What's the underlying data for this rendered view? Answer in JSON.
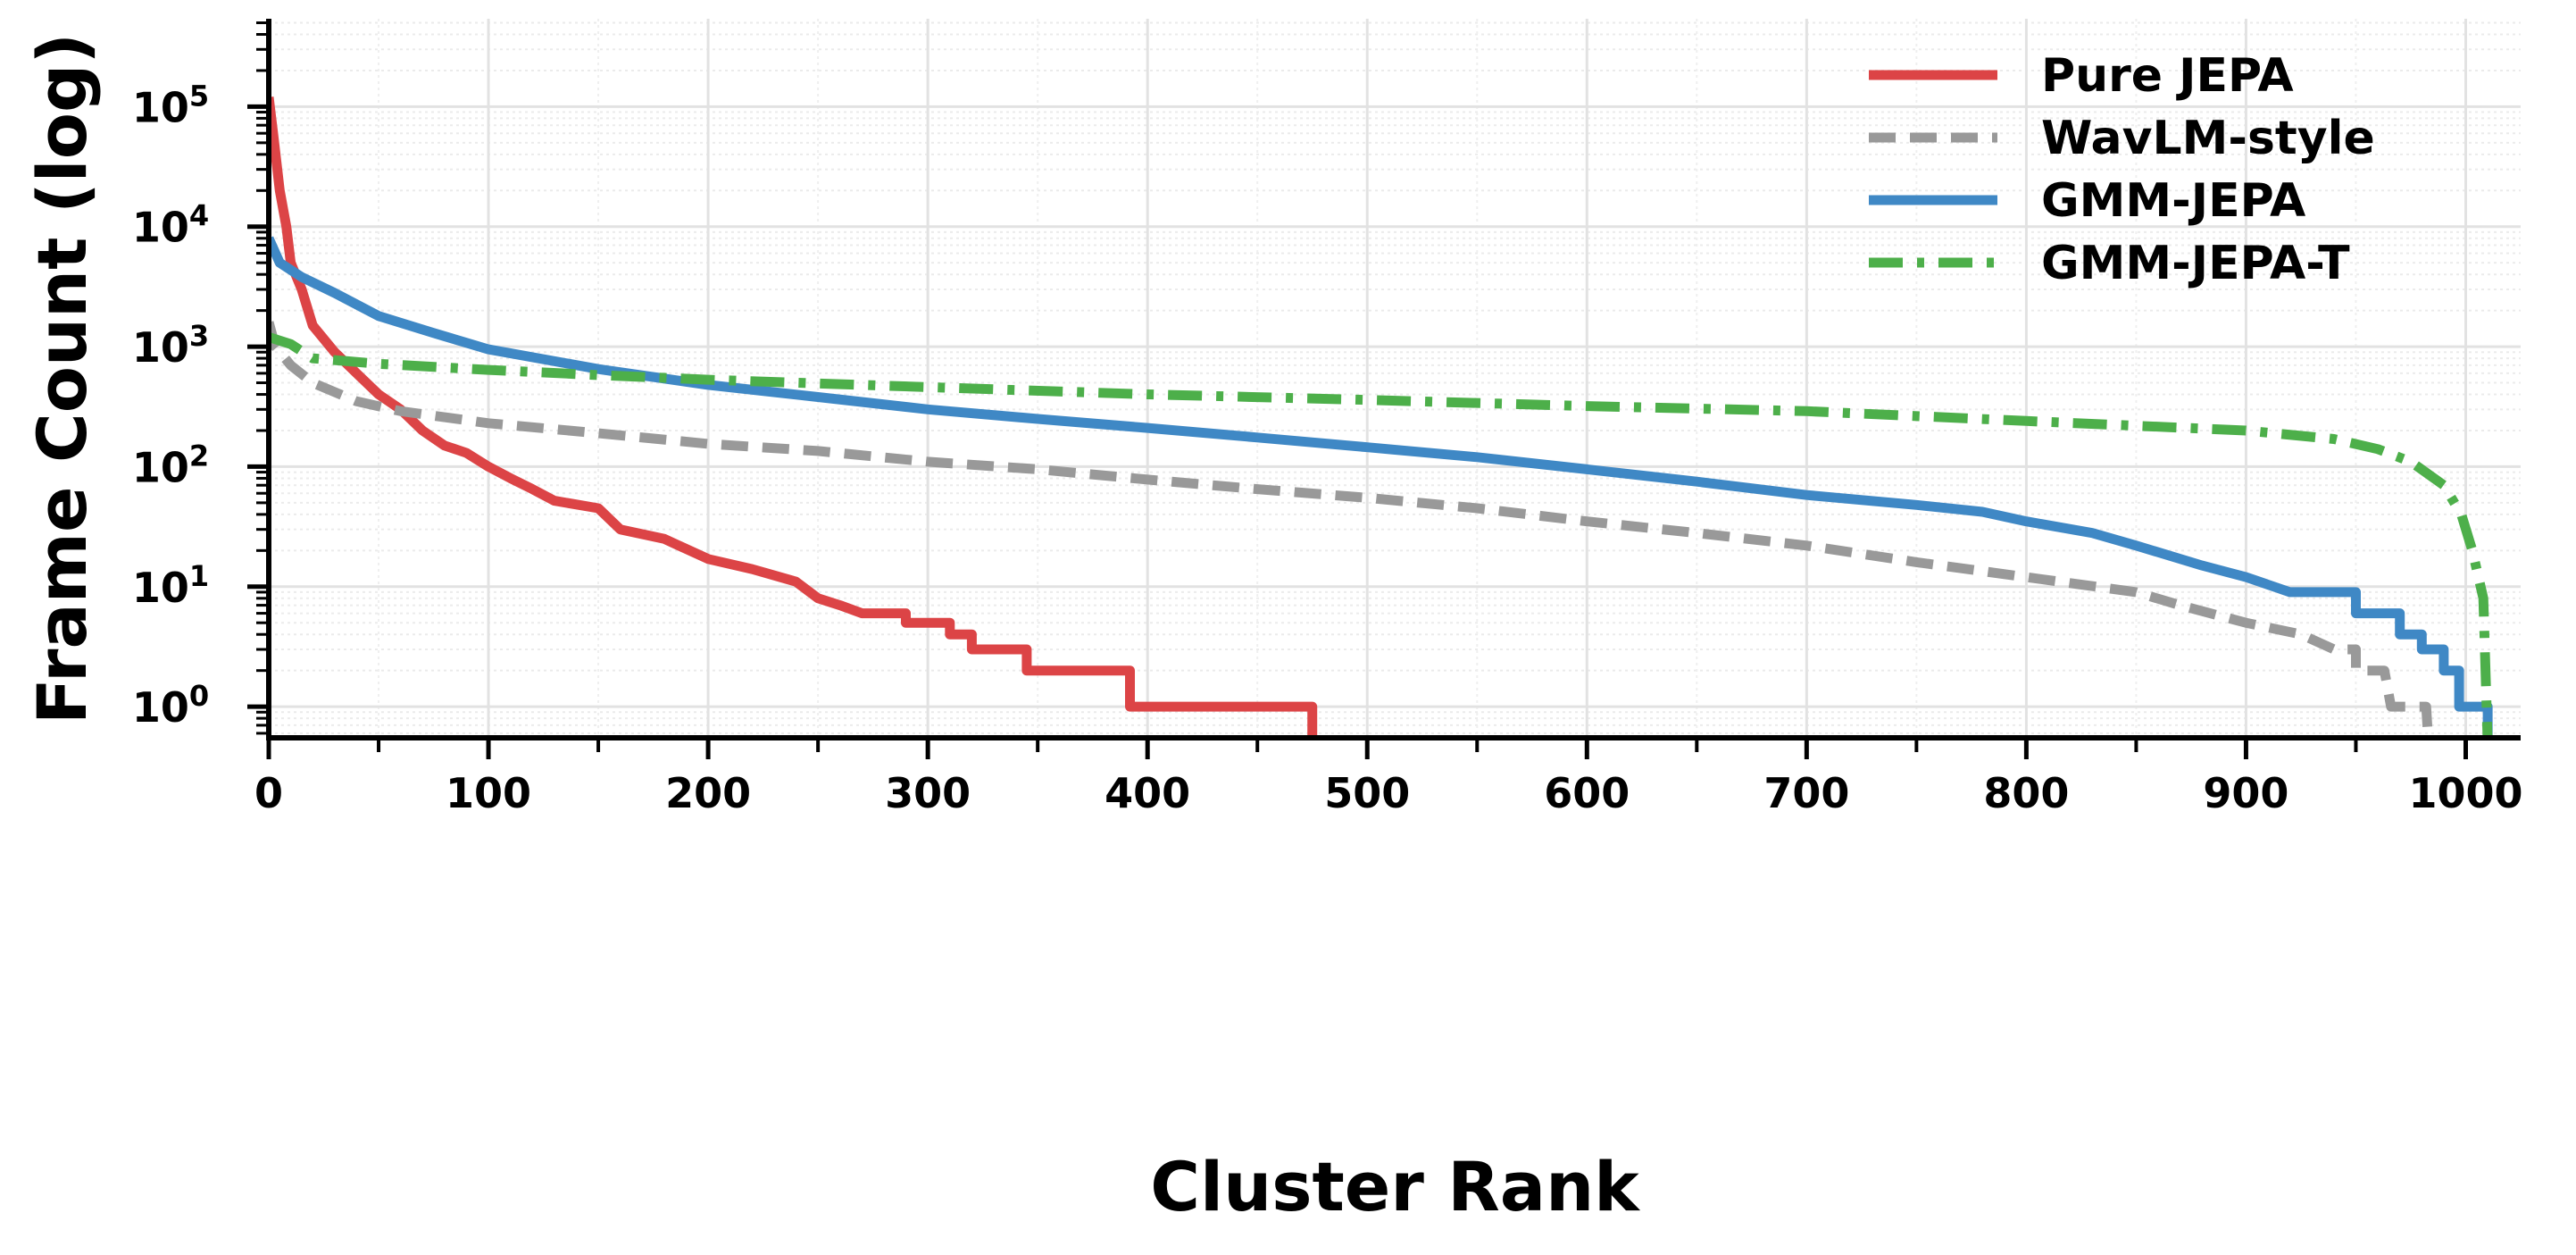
{
  "chart_data": {
    "type": "line",
    "title": "",
    "xlabel": "Cluster Rank",
    "ylabel": "Frame Count (log)",
    "xlim": [
      0,
      1025
    ],
    "ylim": [
      0.55,
      540000
    ],
    "yscale": "log",
    "grid": true,
    "legend_placement": "top-right",
    "x_ticks": [
      "0",
      "100",
      "200",
      "300",
      "400",
      "500",
      "600",
      "700",
      "800",
      "900",
      "1000"
    ],
    "y_ticks": [
      {
        "base": "10",
        "exp": "0"
      },
      {
        "base": "10",
        "exp": "1"
      },
      {
        "base": "10",
        "exp": "2"
      },
      {
        "base": "10",
        "exp": "3"
      },
      {
        "base": "10",
        "exp": "4"
      },
      {
        "base": "10",
        "exp": "5"
      }
    ],
    "series": [
      {
        "name": "Pure JEPA",
        "color": "#dc4446",
        "style": "solid",
        "points": [
          [
            0,
            120000
          ],
          [
            2,
            60000
          ],
          [
            5,
            20000
          ],
          [
            8,
            10000
          ],
          [
            10,
            5000
          ],
          [
            15,
            3000
          ],
          [
            20,
            1500
          ],
          [
            30,
            900
          ],
          [
            40,
            600
          ],
          [
            50,
            400
          ],
          [
            60,
            300
          ],
          [
            70,
            200
          ],
          [
            80,
            150
          ],
          [
            90,
            130
          ],
          [
            100,
            100
          ],
          [
            110,
            80
          ],
          [
            120,
            65
          ],
          [
            130,
            52
          ],
          [
            150,
            45
          ],
          [
            160,
            30
          ],
          [
            180,
            25
          ],
          [
            200,
            17
          ],
          [
            220,
            14
          ],
          [
            240,
            11
          ],
          [
            250,
            8
          ],
          [
            260,
            7
          ],
          [
            270,
            6
          ],
          [
            290,
            6
          ],
          [
            290,
            5
          ],
          [
            310,
            5
          ],
          [
            310,
            4
          ],
          [
            320,
            4
          ],
          [
            320,
            3
          ],
          [
            345,
            3
          ],
          [
            345,
            2
          ],
          [
            392,
            2
          ],
          [
            392,
            1
          ],
          [
            475,
            1
          ],
          [
            475,
            0.5
          ]
        ]
      },
      {
        "name": "WavLM-style",
        "color": "#999999",
        "style": "dashed",
        "points": [
          [
            0,
            1600
          ],
          [
            3,
            1000
          ],
          [
            10,
            700
          ],
          [
            20,
            500
          ],
          [
            40,
            350
          ],
          [
            60,
            290
          ],
          [
            100,
            230
          ],
          [
            150,
            190
          ],
          [
            200,
            155
          ],
          [
            250,
            135
          ],
          [
            300,
            110
          ],
          [
            350,
            95
          ],
          [
            400,
            78
          ],
          [
            450,
            65
          ],
          [
            500,
            55
          ],
          [
            550,
            45
          ],
          [
            600,
            35
          ],
          [
            650,
            28
          ],
          [
            700,
            22
          ],
          [
            750,
            16
          ],
          [
            800,
            12
          ],
          [
            850,
            9
          ],
          [
            870,
            7
          ],
          [
            900,
            5
          ],
          [
            925,
            4
          ],
          [
            940,
            3
          ],
          [
            950,
            3
          ],
          [
            950,
            2
          ],
          [
            963,
            2
          ],
          [
            966,
            1
          ],
          [
            982,
            1
          ],
          [
            983,
            0.5
          ]
        ]
      },
      {
        "name": "GMM-JEPA",
        "color": "#3f88c5",
        "style": "solid",
        "points": [
          [
            0,
            8000
          ],
          [
            5,
            5000
          ],
          [
            15,
            3800
          ],
          [
            30,
            2800
          ],
          [
            50,
            1800
          ],
          [
            75,
            1300
          ],
          [
            100,
            950
          ],
          [
            150,
            650
          ],
          [
            200,
            480
          ],
          [
            250,
            380
          ],
          [
            300,
            300
          ],
          [
            350,
            250
          ],
          [
            400,
            210
          ],
          [
            450,
            175
          ],
          [
            500,
            145
          ],
          [
            550,
            120
          ],
          [
            600,
            95
          ],
          [
            650,
            75
          ],
          [
            700,
            58
          ],
          [
            750,
            48
          ],
          [
            780,
            42
          ],
          [
            800,
            35
          ],
          [
            830,
            28
          ],
          [
            850,
            22
          ],
          [
            880,
            15
          ],
          [
            900,
            12
          ],
          [
            920,
            9
          ],
          [
            950,
            9
          ],
          [
            950,
            6
          ],
          [
            970,
            6
          ],
          [
            970,
            4
          ],
          [
            980,
            4
          ],
          [
            980,
            3
          ],
          [
            990,
            3
          ],
          [
            990,
            2
          ],
          [
            997,
            2
          ],
          [
            997,
            1
          ],
          [
            1010,
            1
          ],
          [
            1010,
            0.5
          ]
        ]
      },
      {
        "name": "GMM-JEPA-T",
        "color": "#4daf4a",
        "style": "dashdot",
        "points": [
          [
            0,
            1200
          ],
          [
            10,
            1050
          ],
          [
            20,
            800
          ],
          [
            50,
            720
          ],
          [
            100,
            640
          ],
          [
            150,
            580
          ],
          [
            200,
            530
          ],
          [
            300,
            460
          ],
          [
            400,
            400
          ],
          [
            500,
            360
          ],
          [
            600,
            320
          ],
          [
            700,
            290
          ],
          [
            800,
            240
          ],
          [
            900,
            200
          ],
          [
            940,
            170
          ],
          [
            960,
            140
          ],
          [
            975,
            110
          ],
          [
            990,
            70
          ],
          [
            998,
            40
          ],
          [
            1003,
            20
          ],
          [
            1008,
            8
          ],
          [
            1010,
            0.5
          ]
        ]
      }
    ]
  }
}
